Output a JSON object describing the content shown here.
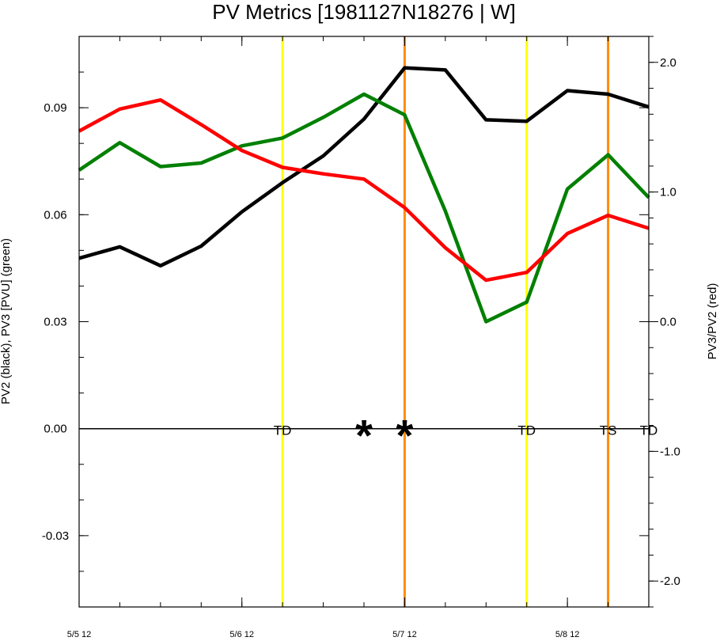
{
  "chart_data": {
    "type": "line",
    "title": "PV Metrics [1981127N18276 | W]",
    "ylabel_left": "PV2 (black), PV3 [PVU] (green)",
    "ylabel_right": "PV3/PV2 (red)",
    "x_ticks": [
      "5/5 12",
      "5/6 12",
      "5/7 12",
      "5/8 12"
    ],
    "x_tick_values": [
      0,
      24,
      48,
      72
    ],
    "xlim": [
      0,
      84
    ],
    "ylim_left": [
      -0.05,
      0.11
    ],
    "ylim_right": [
      -2.2,
      2.2
    ],
    "y_left_ticks": [
      0.09,
      0.06,
      0.03,
      0.0,
      -0.03
    ],
    "y_left_tick_labels": [
      "0.09",
      "0.06",
      "0.03",
      "0.00",
      "-0.03"
    ],
    "y_right_ticks": [
      2.0,
      1.0,
      0.0,
      -1.0,
      -2.0
    ],
    "y_right_tick_labels": [
      "2.0",
      "1.0",
      "0.0",
      "-1.0",
      "-2.0"
    ],
    "x": [
      0,
      6,
      12,
      18,
      24,
      30,
      36,
      42,
      48,
      54,
      60,
      66,
      72,
      78,
      84
    ],
    "series": [
      {
        "name": "PV2",
        "color": "#000000",
        "axis": "left",
        "values": [
          0.0478,
          0.051,
          0.0457,
          0.0512,
          0.0608,
          0.069,
          0.0765,
          0.0868,
          0.1012,
          0.1006,
          0.0866,
          0.0862,
          0.0948,
          0.0938,
          0.0902
        ]
      },
      {
        "name": "PV3",
        "color": "#008000",
        "axis": "left",
        "values": [
          0.0725,
          0.0802,
          0.0735,
          0.0745,
          0.0793,
          0.0815,
          0.0873,
          0.0938,
          0.088,
          0.061,
          0.03,
          0.0355,
          0.0672,
          0.0768,
          0.0648
        ]
      },
      {
        "name": "PV3/PV2",
        "color": "#ff0000",
        "axis": "right",
        "values": [
          1.47,
          1.64,
          1.71,
          1.52,
          1.32,
          1.19,
          1.14,
          1.1,
          0.88,
          0.57,
          0.32,
          0.38,
          0.68,
          0.82,
          0.72
        ]
      }
    ],
    "zero_line": 0.0,
    "vlines": [
      {
        "x": 30,
        "color": "#ffff00"
      },
      {
        "x": 48,
        "color": "#ff8c00"
      },
      {
        "x": 66,
        "color": "#ffff00"
      },
      {
        "x": 78,
        "color": "#ff8c00"
      }
    ],
    "stage_labels": [
      {
        "x": 30,
        "text": "TD"
      },
      {
        "x": 66,
        "text": "TD"
      },
      {
        "x": 78,
        "text": "TS"
      },
      {
        "x": 84,
        "text": "TD"
      }
    ],
    "markers": [
      {
        "x": 42,
        "symbol": "*"
      },
      {
        "x": 48,
        "symbol": "*"
      }
    ]
  }
}
